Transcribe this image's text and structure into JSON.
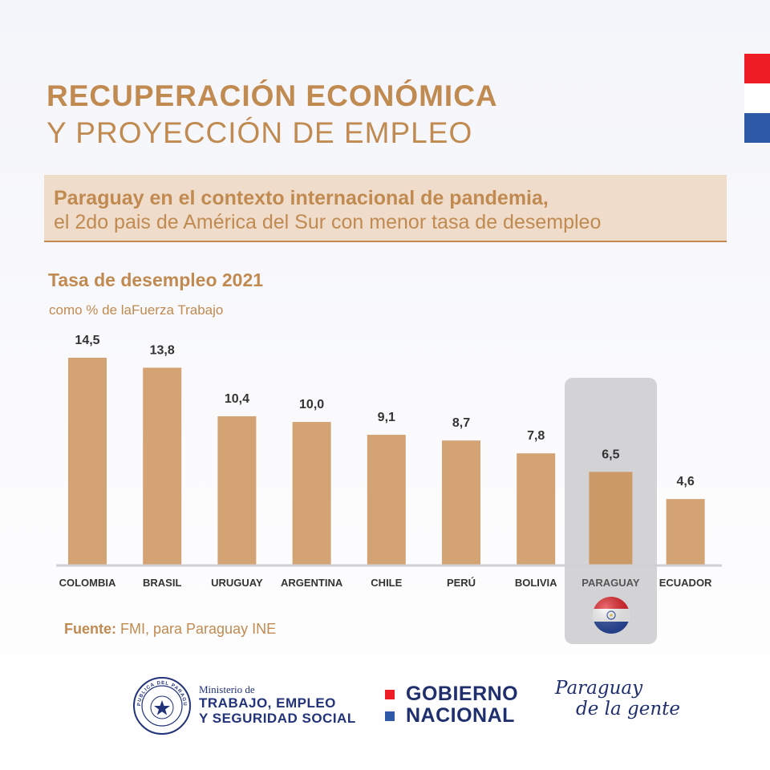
{
  "header": {
    "title_line1": "RECUPERACIÓN ECONÓMICA",
    "title_line2": "Y PROYECCIÓN DE EMPLEO"
  },
  "banner": {
    "line1": "Paraguay en el contexto internacional de pandemia,",
    "line2": "el 2do pais de América del Sur con menor tasa de desempleo"
  },
  "colors": {
    "accent": "#c08a50",
    "bar": "#d4a373",
    "highlight_bg": "#d3d3d6",
    "navy": "#1f2f6e",
    "flag_red": "#ee1c25",
    "flag_blue": "#2e5aa8"
  },
  "chart_data": {
    "type": "bar",
    "title": "Tasa de desempleo 2021",
    "subtitle": "como % de laFuerza Trabajo",
    "categories": [
      "COLOMBIA",
      "BRASIL",
      "URUGUAY",
      "ARGENTINA",
      "CHILE",
      "PERÚ",
      "BOLIVIA",
      "PARAGUAY",
      "ECUADOR"
    ],
    "values": [
      14.5,
      13.8,
      10.4,
      10.0,
      9.1,
      8.7,
      7.8,
      6.5,
      4.6
    ],
    "value_labels": [
      "14,5",
      "13,8",
      "10,4",
      "10,0",
      "9,1",
      "8,7",
      "7,8",
      "6,5",
      "4,6"
    ],
    "highlight": "PARAGUAY",
    "ylim": [
      0,
      14.5
    ],
    "grid": false,
    "xlabel": "",
    "ylabel": ""
  },
  "source": {
    "label": "Fuente:",
    "text": " FMI, para Paraguay INE"
  },
  "footer": {
    "ministry_line1": "Ministerio de",
    "ministry_line2": "TRABAJO, EMPLEO",
    "ministry_line3": "Y SEGURIDAD SOCIAL",
    "gob_line1": "GOBIERNO",
    "gob_line2": "NACIONAL",
    "brand_line1": "Paraguay",
    "brand_line2": "de la gente",
    "seal_text": "REPUBLICA DEL PARAGUAY"
  }
}
